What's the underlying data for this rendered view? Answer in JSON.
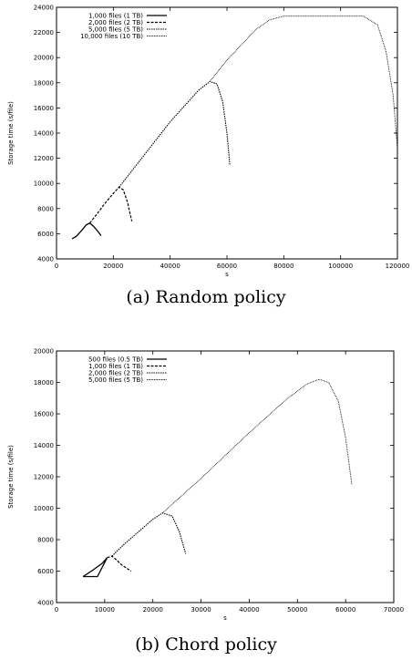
{
  "captions": {
    "a": "(a) Random policy",
    "b": "(b) Chord policy"
  },
  "chart_data": [
    {
      "type": "line",
      "title": "",
      "xlabel": "s",
      "ylabel": "Storage time (s/file)",
      "xlim": [
        0,
        120000
      ],
      "ylim": [
        4000,
        24000
      ],
      "xticks": [
        "0",
        "20000",
        "40000",
        "60000",
        "80000",
        "100000",
        "120000"
      ],
      "yticks": [
        "4000",
        "6000",
        "8000",
        "10000",
        "12000",
        "14000",
        "16000",
        "18000",
        "20000",
        "22000",
        "24000"
      ],
      "grid": false,
      "legend_position": "top-left",
      "series": [
        {
          "name": "1,000 files (1 TB)",
          "style": "solid",
          "x": [
            5500,
            7000,
            9000,
            10500,
            11700,
            13000,
            14500,
            15700
          ],
          "y": [
            5600,
            5800,
            6300,
            6700,
            6850,
            6600,
            6200,
            5850
          ]
        },
        {
          "name": "2,000 files (2 TB)",
          "style": "dashed",
          "x": [
            11700,
            14000,
            17000,
            20000,
            22000,
            23500,
            25000,
            26500
          ],
          "y": [
            6850,
            7500,
            8400,
            9200,
            9700,
            9500,
            8500,
            7000
          ]
        },
        {
          "name": "5,000 files (5 TB)",
          "style": "dotted",
          "x": [
            22000,
            30000,
            40000,
            50000,
            54000,
            56500,
            58500,
            60000,
            61000
          ],
          "y": [
            9700,
            12000,
            14900,
            17400,
            18100,
            17900,
            16500,
            14000,
            11500
          ]
        },
        {
          "name": "10,000 files (10 TB)",
          "style": "finedot",
          "x": [
            54000,
            60000,
            65000,
            70000,
            75000,
            80000,
            90000,
            100000,
            108000,
            113000,
            116000,
            118500,
            120000
          ],
          "y": [
            18100,
            19800,
            21000,
            22200,
            23000,
            23300,
            23300,
            23300,
            23300,
            22600,
            20500,
            17000,
            12800
          ]
        }
      ]
    },
    {
      "type": "line",
      "title": "",
      "xlabel": "s",
      "ylabel": "Storage time (s/file)",
      "xlim": [
        0,
        70000
      ],
      "ylim": [
        4000,
        20000
      ],
      "xticks": [
        "0",
        "10000",
        "20000",
        "30000",
        "40000",
        "50000",
        "60000",
        "70000"
      ],
      "yticks": [
        "4000",
        "6000",
        "8000",
        "10000",
        "12000",
        "14000",
        "16000",
        "18000",
        "20000"
      ],
      "grid": false,
      "legend_position": "top-left",
      "series": [
        {
          "name": "500 files (0.5 TB)",
          "style": "solid",
          "x": [
            5500,
            7500,
            9500,
            10500,
            8500,
            6500,
            5500
          ],
          "y": [
            5650,
            6050,
            6500,
            6850,
            5650,
            5650,
            5650
          ]
        },
        {
          "name": "1,000 files (1 TB)",
          "style": "dashed",
          "x": [
            10500,
            11500,
            12500,
            13500,
            14500,
            15500
          ],
          "y": [
            6850,
            6950,
            6700,
            6400,
            6200,
            6000
          ]
        },
        {
          "name": "2,000 files (2 TB)",
          "style": "dotted",
          "x": [
            11500,
            14000,
            17000,
            20000,
            22000,
            24000,
            25500,
            26800
          ],
          "y": [
            6950,
            7700,
            8500,
            9300,
            9700,
            9500,
            8500,
            7100
          ]
        },
        {
          "name": "5,000 files (5 TB)",
          "style": "finedot",
          "x": [
            22000,
            30000,
            40000,
            48000,
            52000,
            54500,
            56500,
            58500,
            60000,
            61300
          ],
          "y": [
            9700,
            11900,
            14800,
            17000,
            17900,
            18200,
            18000,
            16800,
            14500,
            11500
          ]
        }
      ]
    }
  ]
}
